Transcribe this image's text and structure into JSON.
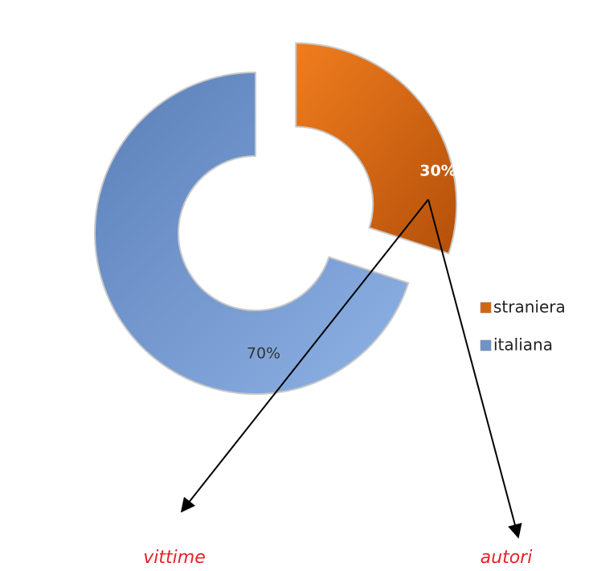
{
  "chart_data": {
    "type": "donut",
    "categories": [
      "straniera",
      "italiana"
    ],
    "values": [
      30,
      70
    ],
    "value_labels": [
      "30%",
      "70%"
    ],
    "colors": [
      "#d2660f",
      "#6f93c8"
    ],
    "annotations": [
      "vittime",
      "autori"
    ]
  }
}
